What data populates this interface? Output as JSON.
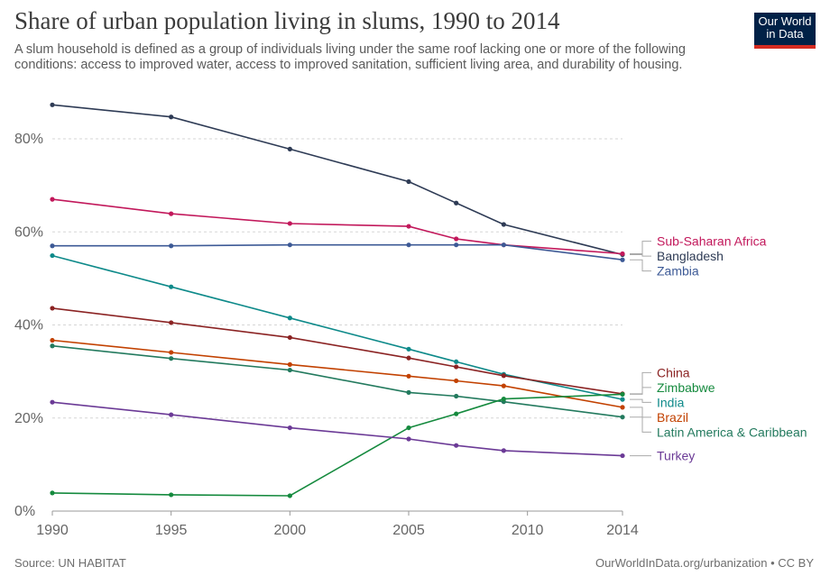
{
  "header": {
    "title": "Share of urban population living in slums, 1990 to 2014",
    "subtitle": "A slum household is defined as a group of individuals living under the same roof lacking one or more of the following conditions: access to improved water, access to improved sanitation, sufficient living area, and durability of housing.",
    "logo_line1": "Our World",
    "logo_line2": "in Data"
  },
  "footer": {
    "source": "Source: UN HABITAT",
    "credit": "OurWorldInData.org/urbanization • CC BY"
  },
  "colors": {
    "brand_bg": "#002147",
    "brand_accent": "#d42b21"
  },
  "chart_data": {
    "type": "line",
    "x": [
      1990,
      1995,
      2000,
      2005,
      2007,
      2009,
      2014
    ],
    "xticks": [
      "1990",
      "1995",
      "2000",
      "2005",
      "2010",
      "2014"
    ],
    "yticks": [
      "0%",
      "20%",
      "40%",
      "60%",
      "80%"
    ],
    "xlim": [
      1990,
      2014
    ],
    "ylim": [
      0,
      80
    ],
    "grid": "horizontal dashed",
    "legend": "right, line-end labels",
    "series": [
      {
        "name": "Bangladesh",
        "color": "#2e3b55",
        "values": [
          87.3,
          84.7,
          77.8,
          70.8,
          66.2,
          61.6,
          55.1
        ]
      },
      {
        "name": "Sub-Saharan Africa",
        "color": "#c2185b",
        "values": [
          67.0,
          63.9,
          61.8,
          61.2,
          58.5,
          57.2,
          55.3
        ]
      },
      {
        "name": "Zambia",
        "color": "#3d5a96",
        "values": [
          57.0,
          57.0,
          57.2,
          57.2,
          57.2,
          57.2,
          54.0
        ]
      },
      {
        "name": "India",
        "color": "#0e8a8a",
        "values": [
          54.9,
          48.2,
          41.5,
          34.8,
          32.1,
          29.4,
          24.0
        ]
      },
      {
        "name": "China",
        "color": "#8b2323",
        "values": [
          43.6,
          40.5,
          37.3,
          32.9,
          31.0,
          29.1,
          25.2
        ]
      },
      {
        "name": "Brazil",
        "color": "#c24100",
        "values": [
          36.7,
          34.1,
          31.5,
          29.0,
          28.0,
          26.9,
          22.3
        ]
      },
      {
        "name": "Latin America & Caribbean",
        "color": "#237a5e",
        "values": [
          35.5,
          32.8,
          30.3,
          25.5,
          24.7,
          23.5,
          20.2
        ]
      },
      {
        "name": "Zimbabwe",
        "color": "#158a3e",
        "values": [
          3.9,
          3.5,
          3.3,
          17.9,
          20.9,
          24.1,
          25.1
        ]
      },
      {
        "name": "Turkey",
        "color": "#6b3a96",
        "values": [
          23.4,
          20.7,
          17.9,
          15.5,
          14.1,
          13.0,
          11.9
        ]
      }
    ]
  }
}
